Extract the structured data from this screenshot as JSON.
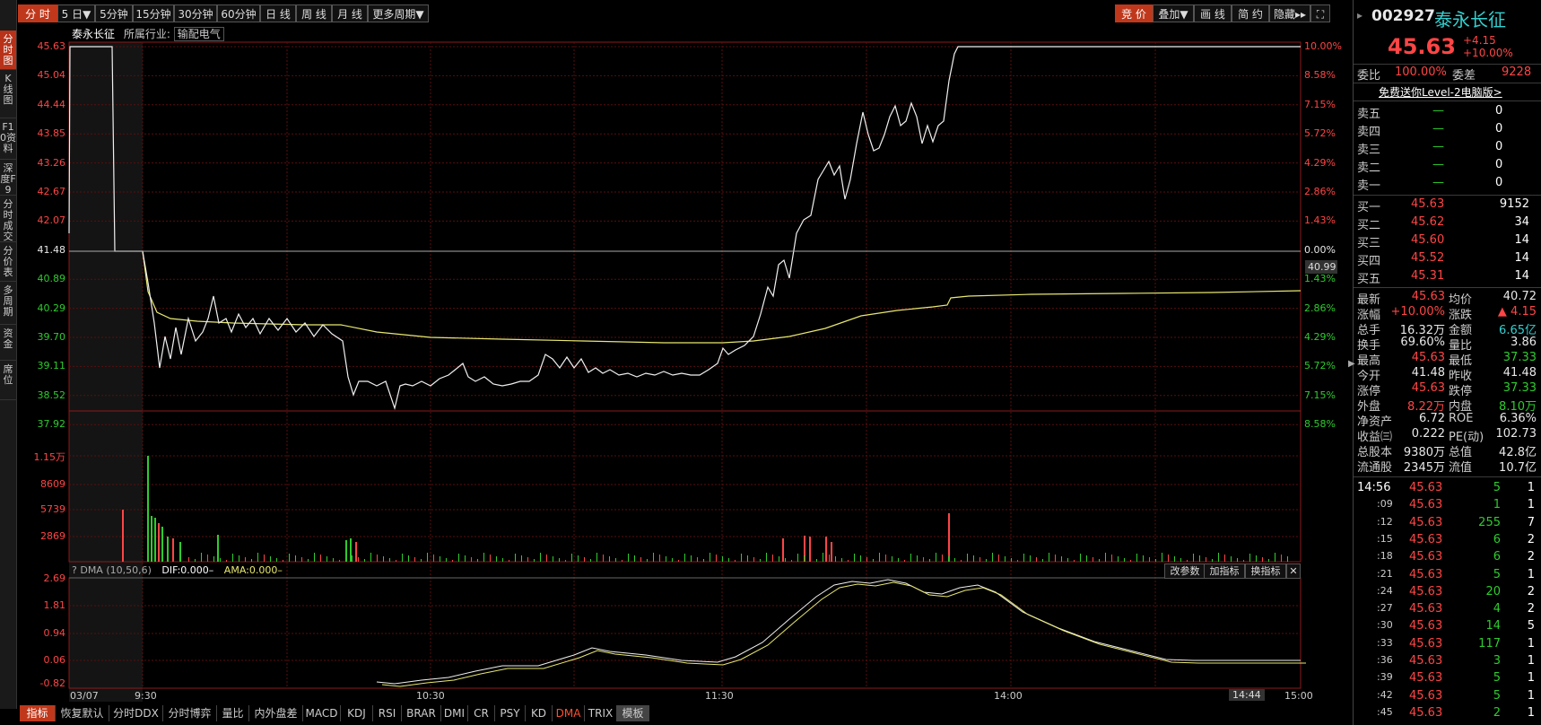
{
  "toolbar": {
    "periods": [
      "分 时",
      "5 日▼",
      "5分钟",
      "15分钟",
      "30分钟",
      "60分钟",
      "日 线",
      "周 线",
      "月 线",
      "更多周期▼"
    ],
    "right_buttons": [
      "竞 价",
      "叠加▼",
      "画 线",
      "简 约",
      "隐藏▸▸",
      "⛶"
    ]
  },
  "left_tabs": [
    "分时图",
    "K线图",
    "F10资料",
    "深度F9",
    "分时成交",
    "分价表",
    "多周期",
    "资金",
    "席位"
  ],
  "chart_header": {
    "name": "泰永长征",
    "industry_label": "所属行业:",
    "industry": "输配电气"
  },
  "price_axis_left": [
    "45.63",
    "45.04",
    "44.44",
    "43.85",
    "43.26",
    "42.67",
    "42.07",
    "41.48",
    "40.89",
    "40.29",
    "39.70",
    "39.11",
    "38.52",
    "37.92"
  ],
  "price_axis_right": [
    "10.00%",
    "8.58%",
    "7.15%",
    "5.72%",
    "4.29%",
    "2.86%",
    "1.43%",
    "0.00%",
    "1.43%",
    "2.86%",
    "4.29%",
    "5.72%",
    "7.15%",
    "8.58%"
  ],
  "cursor_price": "40.99",
  "volume_axis": [
    "1.15万",
    "8609",
    "5739",
    "2869"
  ],
  "indicator": {
    "name": "DMA (10,50,6)",
    "dif": "DIF:0.000–",
    "ama": "AMA:0.000–",
    "buttons": [
      "改参数",
      "加指标",
      "换指标",
      "✕"
    ],
    "axis": [
      "2.69",
      "1.81",
      "0.94",
      "0.06",
      "-0.82"
    ]
  },
  "time_axis": {
    "date": "03/07",
    "labels": [
      "9:30",
      "10:30",
      "11:30",
      "14:00",
      "15:00"
    ],
    "cursor": "14:44"
  },
  "bottom_tabs": [
    "指标",
    "恢复默认",
    "分时DDX",
    "分时博弈",
    "量比",
    "内外盘差",
    "MACD",
    "KDJ",
    "RSI",
    "BRAR",
    "DMI",
    "CR",
    "PSY",
    "KD",
    "DMA",
    "TRIX",
    "模板"
  ],
  "stock": {
    "code": "002927",
    "name": "泰永长征",
    "price": "45.63",
    "change": "+4.15",
    "change_pct": "+10.00%",
    "weibi_label": "委比",
    "weibi": "100.00%",
    "weicha_label": "委差",
    "weicha": "9228",
    "promo": "免费送你Level-2电脑版>"
  },
  "sell_orders": [
    {
      "label": "卖五",
      "price": "—",
      "vol": "0"
    },
    {
      "label": "卖四",
      "price": "—",
      "vol": "0"
    },
    {
      "label": "卖三",
      "price": "—",
      "vol": "0"
    },
    {
      "label": "卖二",
      "price": "—",
      "vol": "0"
    },
    {
      "label": "卖一",
      "price": "—",
      "vol": "0"
    }
  ],
  "buy_orders": [
    {
      "label": "买一",
      "price": "45.63",
      "vol": "9152"
    },
    {
      "label": "买二",
      "price": "45.62",
      "vol": "34"
    },
    {
      "label": "买三",
      "price": "45.60",
      "vol": "14"
    },
    {
      "label": "买四",
      "price": "45.52",
      "vol": "14"
    },
    {
      "label": "买五",
      "price": "45.31",
      "vol": "14"
    }
  ],
  "quote_stats": [
    {
      "l1": "最新",
      "v1": "45.63",
      "c1": "red",
      "l2": "均价",
      "v2": "40.72",
      "c2": "white"
    },
    {
      "l1": "涨幅",
      "v1": "+10.00%",
      "c1": "red",
      "l2": "涨跌",
      "v2": "▲ 4.15",
      "c2": "red"
    },
    {
      "l1": "总手",
      "v1": "16.32万",
      "c1": "white",
      "l2": "金额",
      "v2": "6.65亿",
      "c2": "cyan"
    },
    {
      "l1": "换手",
      "v1": "69.60%",
      "c1": "white",
      "l2": "量比",
      "v2": "3.86",
      "c2": "white"
    },
    {
      "l1": "最高",
      "v1": "45.63",
      "c1": "red",
      "l2": "最低",
      "v2": "37.33",
      "c2": "green"
    },
    {
      "l1": "今开",
      "v1": "41.48",
      "c1": "white",
      "l2": "昨收",
      "v2": "41.48",
      "c2": "white"
    },
    {
      "l1": "涨停",
      "v1": "45.63",
      "c1": "red",
      "l2": "跌停",
      "v2": "37.33",
      "c2": "green"
    },
    {
      "l1": "外盘",
      "v1": "8.22万",
      "c1": "red",
      "l2": "内盘",
      "v2": "8.10万",
      "c2": "green"
    },
    {
      "l1": "净资产",
      "v1": "6.72",
      "c1": "white",
      "l2": "ROE",
      "v2": "6.36%",
      "c2": "white"
    },
    {
      "l1": "收益㈢",
      "v1": "0.222",
      "c1": "white",
      "l2": "PE(动)",
      "v2": "102.73",
      "c2": "white"
    },
    {
      "l1": "总股本",
      "v1": "9380万",
      "c1": "white",
      "l2": "总值",
      "v2": "42.8亿",
      "c2": "white"
    },
    {
      "l1": "流通股",
      "v1": "2345万",
      "c1": "white",
      "l2": "流值",
      "v2": "10.7亿",
      "c2": "white"
    }
  ],
  "ticks": [
    {
      "t": "14:56",
      "p": "45.63",
      "v": "5",
      "n": "1",
      "vc": "green"
    },
    {
      "t": ":09",
      "p": "45.63",
      "v": "1",
      "n": "1",
      "vc": "green"
    },
    {
      "t": ":12",
      "p": "45.63",
      "v": "255",
      "n": "7",
      "vc": "green"
    },
    {
      "t": ":15",
      "p": "45.63",
      "v": "6",
      "n": "2",
      "vc": "green"
    },
    {
      "t": ":18",
      "p": "45.63",
      "v": "6",
      "n": "2",
      "vc": "green"
    },
    {
      "t": ":21",
      "p": "45.63",
      "v": "5",
      "n": "1",
      "vc": "green"
    },
    {
      "t": ":24",
      "p": "45.63",
      "v": "20",
      "n": "2",
      "vc": "green"
    },
    {
      "t": ":27",
      "p": "45.63",
      "v": "4",
      "n": "2",
      "vc": "green"
    },
    {
      "t": ":30",
      "p": "45.63",
      "v": "14",
      "n": "5",
      "vc": "green"
    },
    {
      "t": ":33",
      "p": "45.63",
      "v": "117",
      "n": "1",
      "vc": "green"
    },
    {
      "t": ":36",
      "p": "45.63",
      "v": "3",
      "n": "1",
      "vc": "green"
    },
    {
      "t": ":39",
      "p": "45.63",
      "v": "5",
      "n": "1",
      "vc": "green"
    },
    {
      "t": ":42",
      "p": "45.63",
      "v": "5",
      "n": "1",
      "vc": "green"
    },
    {
      "t": ":45",
      "p": "45.63",
      "v": "2",
      "n": "1",
      "vc": "green"
    }
  ],
  "colors": {
    "accent": "#c0381b",
    "up": "#ff4545",
    "down": "#2ecc2e",
    "avg_line": "#e8e870",
    "grid": "#7a1010"
  }
}
